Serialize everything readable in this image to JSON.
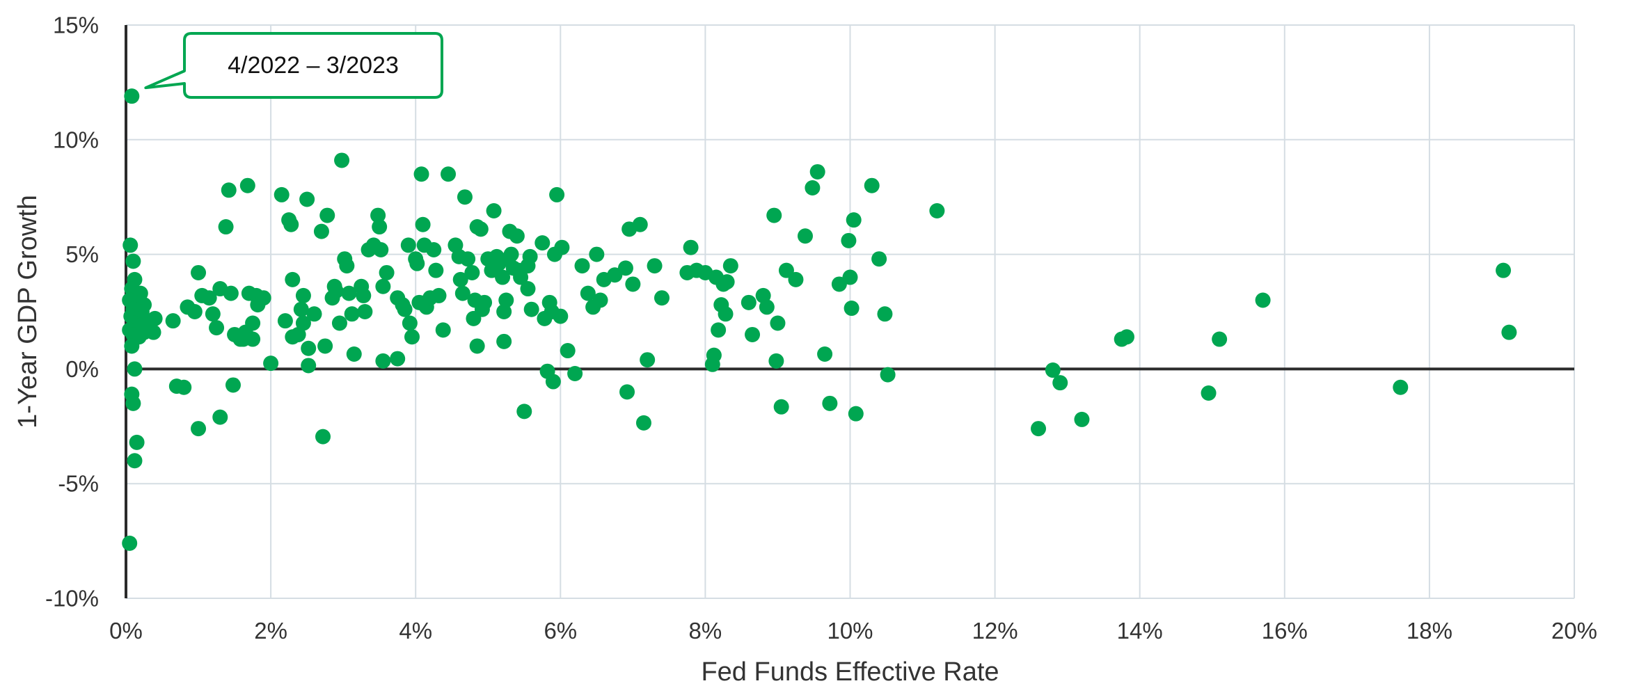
{
  "chart_data": {
    "type": "scatter",
    "title": "",
    "xlabel": "Fed Funds Effective Rate",
    "ylabel": "1-Year GDP Growth",
    "xlim": [
      0,
      20
    ],
    "ylim": [
      -10,
      15
    ],
    "x_ticks": [
      0,
      2,
      4,
      6,
      8,
      10,
      12,
      14,
      16,
      18,
      20
    ],
    "y_ticks": [
      -10,
      -5,
      0,
      5,
      10,
      15
    ],
    "x_tick_labels": [
      "0%",
      "2%",
      "4%",
      "6%",
      "8%",
      "10%",
      "12%",
      "14%",
      "16%",
      "18%",
      "20%"
    ],
    "y_tick_labels": [
      "-10%",
      "-5%",
      "0%",
      "5%",
      "10%",
      "15%"
    ],
    "grid": true,
    "color": "#00a651",
    "annotation": {
      "text": "4/2022 – 3/2023",
      "x": 0.08,
      "y": 11.9
    },
    "points": [
      [
        0.08,
        11.9
      ],
      [
        0.05,
        -7.6
      ],
      [
        0.06,
        5.4
      ],
      [
        0.1,
        4.7
      ],
      [
        0.12,
        3.9
      ],
      [
        0.08,
        3.5
      ],
      [
        0.15,
        3.2
      ],
      [
        0.2,
        3.3
      ],
      [
        0.05,
        3.0
      ],
      [
        0.18,
        2.9
      ],
      [
        0.25,
        2.8
      ],
      [
        0.1,
        2.6
      ],
      [
        0.22,
        2.5
      ],
      [
        0.07,
        2.3
      ],
      [
        0.15,
        2.2
      ],
      [
        0.3,
        2.1
      ],
      [
        0.12,
        2.0
      ],
      [
        0.2,
        1.9
      ],
      [
        0.05,
        1.7
      ],
      [
        0.25,
        1.6
      ],
      [
        0.1,
        1.5
      ],
      [
        0.18,
        1.4
      ],
      [
        0.08,
        1.0
      ],
      [
        0.12,
        0.0
      ],
      [
        0.08,
        -1.1
      ],
      [
        0.1,
        -1.5
      ],
      [
        0.15,
        -3.2
      ],
      [
        0.12,
        -4.0
      ],
      [
        0.4,
        2.2
      ],
      [
        0.38,
        1.6
      ],
      [
        0.65,
        2.1
      ],
      [
        0.7,
        -0.75
      ],
      [
        0.8,
        -0.8
      ],
      [
        0.85,
        2.7
      ],
      [
        0.95,
        2.5
      ],
      [
        1.0,
        -2.6
      ],
      [
        1.0,
        4.2
      ],
      [
        1.05,
        3.2
      ],
      [
        1.15,
        3.1
      ],
      [
        1.2,
        2.4
      ],
      [
        1.25,
        1.8
      ],
      [
        1.3,
        3.5
      ],
      [
        1.3,
        -2.1
      ],
      [
        1.38,
        6.2
      ],
      [
        1.42,
        7.8
      ],
      [
        1.45,
        3.3
      ],
      [
        1.48,
        -0.7
      ],
      [
        1.5,
        1.5
      ],
      [
        1.58,
        1.3
      ],
      [
        1.62,
        1.3
      ],
      [
        1.65,
        1.6
      ],
      [
        1.68,
        8.0
      ],
      [
        1.7,
        3.3
      ],
      [
        1.75,
        2.0
      ],
      [
        1.75,
        1.3
      ],
      [
        1.8,
        3.2
      ],
      [
        1.82,
        2.8
      ],
      [
        1.9,
        3.1
      ],
      [
        2.0,
        0.25
      ],
      [
        2.15,
        7.6
      ],
      [
        2.2,
        2.1
      ],
      [
        2.25,
        6.5
      ],
      [
        2.28,
        6.3
      ],
      [
        2.3,
        3.9
      ],
      [
        2.3,
        1.4
      ],
      [
        2.38,
        1.5
      ],
      [
        2.42,
        2.6
      ],
      [
        2.45,
        2.0
      ],
      [
        2.45,
        3.2
      ],
      [
        2.5,
        7.4
      ],
      [
        2.52,
        0.9
      ],
      [
        2.52,
        0.15
      ],
      [
        2.6,
        2.4
      ],
      [
        2.7,
        6.0
      ],
      [
        2.72,
        -2.95
      ],
      [
        2.75,
        1.0
      ],
      [
        2.78,
        6.7
      ],
      [
        2.85,
        3.1
      ],
      [
        2.88,
        3.6
      ],
      [
        2.9,
        3.4
      ],
      [
        2.95,
        2.0
      ],
      [
        2.98,
        9.1
      ],
      [
        3.02,
        4.8
      ],
      [
        3.05,
        4.5
      ],
      [
        3.08,
        3.3
      ],
      [
        3.12,
        2.4
      ],
      [
        3.15,
        0.65
      ],
      [
        3.25,
        3.6
      ],
      [
        3.28,
        3.2
      ],
      [
        3.3,
        2.5
      ],
      [
        3.35,
        5.2
      ],
      [
        3.42,
        5.4
      ],
      [
        3.48,
        6.7
      ],
      [
        3.5,
        6.2
      ],
      [
        3.52,
        5.2
      ],
      [
        3.55,
        3.6
      ],
      [
        3.55,
        0.35
      ],
      [
        3.6,
        4.2
      ],
      [
        3.75,
        0.45
      ],
      [
        3.75,
        3.1
      ],
      [
        3.82,
        2.8
      ],
      [
        3.85,
        2.6
      ],
      [
        3.9,
        5.4
      ],
      [
        3.92,
        2.0
      ],
      [
        3.95,
        1.4
      ],
      [
        4.0,
        4.8
      ],
      [
        4.02,
        4.6
      ],
      [
        4.05,
        2.9
      ],
      [
        4.08,
        8.5
      ],
      [
        4.1,
        6.3
      ],
      [
        4.12,
        5.4
      ],
      [
        4.15,
        2.7
      ],
      [
        4.2,
        3.1
      ],
      [
        4.25,
        5.2
      ],
      [
        4.28,
        4.3
      ],
      [
        4.32,
        3.2
      ],
      [
        4.38,
        1.7
      ],
      [
        4.45,
        8.5
      ],
      [
        4.55,
        5.4
      ],
      [
        4.6,
        4.9
      ],
      [
        4.62,
        3.9
      ],
      [
        4.65,
        3.3
      ],
      [
        4.68,
        7.5
      ],
      [
        4.72,
        4.8
      ],
      [
        4.78,
        4.2
      ],
      [
        4.8,
        2.2
      ],
      [
        4.82,
        3.0
      ],
      [
        4.85,
        6.2
      ],
      [
        4.85,
        1.0
      ],
      [
        4.9,
        6.1
      ],
      [
        4.92,
        2.6
      ],
      [
        4.95,
        2.9
      ],
      [
        5.0,
        4.8
      ],
      [
        5.05,
        4.3
      ],
      [
        5.08,
        6.9
      ],
      [
        5.12,
        4.9
      ],
      [
        5.15,
        4.6
      ],
      [
        5.2,
        4.0
      ],
      [
        5.22,
        1.2
      ],
      [
        5.22,
        2.5
      ],
      [
        5.25,
        3.0
      ],
      [
        5.28,
        4.8
      ],
      [
        5.3,
        6.0
      ],
      [
        5.32,
        5.0
      ],
      [
        5.35,
        4.4
      ],
      [
        5.4,
        5.8
      ],
      [
        5.42,
        4.3
      ],
      [
        5.45,
        4.0
      ],
      [
        5.5,
        -1.85
      ],
      [
        5.55,
        4.5
      ],
      [
        5.55,
        3.5
      ],
      [
        5.58,
        4.9
      ],
      [
        5.6,
        2.6
      ],
      [
        5.75,
        5.5
      ],
      [
        5.78,
        2.2
      ],
      [
        5.82,
        -0.1
      ],
      [
        5.85,
        2.9
      ],
      [
        5.88,
        2.5
      ],
      [
        5.9,
        -0.55
      ],
      [
        5.92,
        5.0
      ],
      [
        5.95,
        7.6
      ],
      [
        6.0,
        2.3
      ],
      [
        6.02,
        5.3
      ],
      [
        6.1,
        0.8
      ],
      [
        6.2,
        -0.2
      ],
      [
        6.3,
        4.5
      ],
      [
        6.38,
        3.3
      ],
      [
        6.45,
        2.7
      ],
      [
        6.5,
        5.0
      ],
      [
        6.55,
        3.0
      ],
      [
        6.6,
        3.9
      ],
      [
        6.75,
        4.1
      ],
      [
        6.9,
        4.4
      ],
      [
        6.92,
        -1.0
      ],
      [
        6.95,
        6.1
      ],
      [
        7.0,
        3.7
      ],
      [
        7.1,
        6.3
      ],
      [
        7.15,
        -2.35
      ],
      [
        7.2,
        0.4
      ],
      [
        7.3,
        4.5
      ],
      [
        7.4,
        3.1
      ],
      [
        7.75,
        4.2
      ],
      [
        7.8,
        5.3
      ],
      [
        7.88,
        4.3
      ],
      [
        8.0,
        4.2
      ],
      [
        8.1,
        0.2
      ],
      [
        8.12,
        0.6
      ],
      [
        8.15,
        4.0
      ],
      [
        8.18,
        1.7
      ],
      [
        8.22,
        2.8
      ],
      [
        8.25,
        3.7
      ],
      [
        8.28,
        2.4
      ],
      [
        8.3,
        3.8
      ],
      [
        8.35,
        4.5
      ],
      [
        8.6,
        2.9
      ],
      [
        8.65,
        1.5
      ],
      [
        8.8,
        3.2
      ],
      [
        8.85,
        2.7
      ],
      [
        8.95,
        6.7
      ],
      [
        8.98,
        0.35
      ],
      [
        9.0,
        2.0
      ],
      [
        9.05,
        -1.65
      ],
      [
        9.12,
        4.3
      ],
      [
        9.25,
        3.9
      ],
      [
        9.38,
        5.8
      ],
      [
        9.48,
        7.9
      ],
      [
        9.55,
        8.6
      ],
      [
        9.65,
        0.65
      ],
      [
        9.72,
        -1.5
      ],
      [
        9.85,
        3.7
      ],
      [
        9.98,
        5.6
      ],
      [
        10.0,
        4.0
      ],
      [
        10.02,
        2.65
      ],
      [
        10.05,
        6.5
      ],
      [
        10.08,
        -1.95
      ],
      [
        10.3,
        8.0
      ],
      [
        10.4,
        4.8
      ],
      [
        10.48,
        2.4
      ],
      [
        10.52,
        -0.25
      ],
      [
        11.2,
        6.9
      ],
      [
        12.6,
        -2.6
      ],
      [
        12.8,
        -0.05
      ],
      [
        12.9,
        -0.6
      ],
      [
        13.2,
        -2.2
      ],
      [
        13.75,
        1.3
      ],
      [
        13.82,
        1.4
      ],
      [
        14.95,
        -1.05
      ],
      [
        15.1,
        1.3
      ],
      [
        15.7,
        3.0
      ],
      [
        17.6,
        -0.8
      ],
      [
        19.02,
        4.3
      ],
      [
        19.1,
        1.6
      ]
    ]
  }
}
